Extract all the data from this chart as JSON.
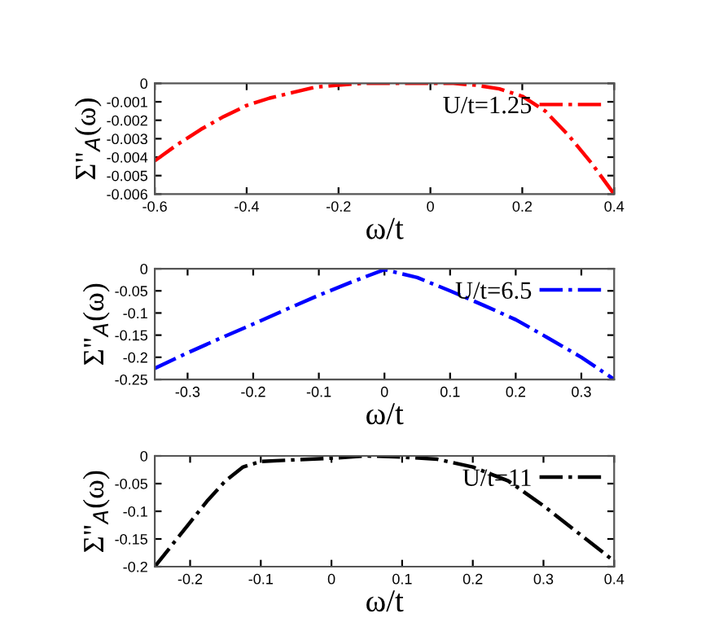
{
  "chart_data": [
    {
      "type": "line",
      "xlabel": "ω/t",
      "ylabel": "Σ\"$_{A}$(ω)",
      "xlim": [
        -0.6,
        0.4
      ],
      "xticks": [
        -0.6,
        -0.4,
        -0.2,
        0,
        0.2,
        0.4
      ],
      "ylim": [
        -0.006,
        0
      ],
      "yticks": [
        -0.006,
        -0.005,
        -0.004,
        -0.003,
        -0.002,
        -0.001,
        0
      ],
      "grid": false,
      "legend": "top right",
      "line_style": "dashdot",
      "marker": "none",
      "x": [
        -0.6,
        -0.55,
        -0.5,
        -0.45,
        -0.4,
        -0.35,
        -0.3,
        -0.25,
        -0.2,
        -0.15,
        -0.1,
        -0.05,
        0,
        0.05,
        0.1,
        0.15,
        0.2,
        0.25,
        0.3,
        0.35,
        0.4
      ],
      "series": [
        {
          "name": "U/t=1.25",
          "color": "#ff0000",
          "values": [
            -0.0042,
            -0.0033,
            -0.0025,
            -0.0018,
            -0.0012,
            -0.0008,
            -0.0005,
            -0.0002,
            -0.0001,
            0,
            0,
            0,
            0,
            0,
            -0.0001,
            -0.0003,
            -0.0007,
            -0.0015,
            -0.0028,
            -0.0043,
            -0.006
          ]
        }
      ]
    },
    {
      "type": "line",
      "xlabel": "ω/t",
      "ylabel": "Σ\"$_{A}$(ω)",
      "xlim": [
        -0.35,
        0.35
      ],
      "xticks": [
        -0.3,
        -0.2,
        -0.1,
        0,
        0.1,
        0.2,
        0.3
      ],
      "ylim": [
        -0.25,
        0
      ],
      "yticks": [
        -0.25,
        -0.2,
        -0.15,
        -0.1,
        -0.05,
        0
      ],
      "grid": false,
      "legend": "top right",
      "line_style": "dashdot",
      "marker": "none",
      "x": [
        -0.35,
        -0.3,
        -0.25,
        -0.2,
        -0.15,
        -0.1,
        -0.05,
        0,
        0.05,
        0.1,
        0.15,
        0.2,
        0.25,
        0.3,
        0.35
      ],
      "series": [
        {
          "name": "U/t=6.5",
          "color": "#0000ff",
          "values": [
            -0.225,
            -0.19,
            -0.157,
            -0.125,
            -0.092,
            -0.06,
            -0.03,
            -0.002,
            -0.02,
            -0.05,
            -0.082,
            -0.115,
            -0.157,
            -0.2,
            -0.25
          ]
        }
      ]
    },
    {
      "type": "line",
      "xlabel": "ω/t",
      "ylabel": "Σ\"$_{A}$(ω)",
      "xlim": [
        -0.25,
        0.4
      ],
      "xticks": [
        -0.2,
        -0.1,
        0,
        0.1,
        0.2,
        0.3,
        0.4
      ],
      "ylim": [
        -0.2,
        0
      ],
      "yticks": [
        -0.2,
        -0.15,
        -0.1,
        -0.05,
        0
      ],
      "grid": false,
      "legend": "top right",
      "line_style": "dashdot",
      "marker": "none",
      "x": [
        -0.25,
        -0.2,
        -0.175,
        -0.15,
        -0.125,
        -0.1,
        -0.05,
        0,
        0.05,
        0.1,
        0.15,
        0.2,
        0.25,
        0.3,
        0.35,
        0.4
      ],
      "series": [
        {
          "name": "U/t=11",
          "color": "#000000",
          "values": [
            -0.2,
            -0.12,
            -0.08,
            -0.045,
            -0.02,
            -0.01,
            -0.007,
            -0.004,
            0,
            -0.002,
            -0.006,
            -0.02,
            -0.045,
            -0.09,
            -0.14,
            -0.19
          ]
        }
      ]
    }
  ]
}
